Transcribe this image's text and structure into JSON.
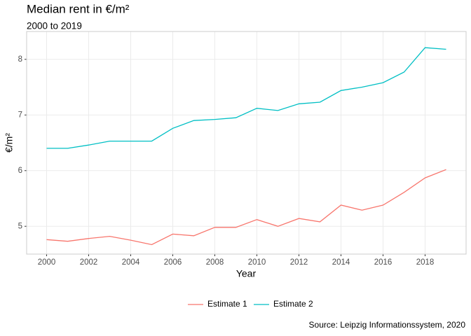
{
  "chart_data": {
    "type": "line",
    "title": "Median rent in €/m²",
    "subtitle": "2000 to 2019",
    "x_label": "Year",
    "y_label": "€/m²",
    "caption": "Source: Leipzig Informationssystem, 2020",
    "x": [
      2000,
      2001,
      2002,
      2003,
      2004,
      2005,
      2006,
      2007,
      2008,
      2009,
      2010,
      2011,
      2012,
      2013,
      2014,
      2015,
      2016,
      2017,
      2018,
      2019
    ],
    "series": [
      {
        "name": "Estimate 1",
        "color": "#f8766d",
        "values": [
          4.76,
          4.73,
          4.78,
          4.82,
          4.75,
          4.67,
          4.86,
          4.83,
          4.98,
          4.98,
          5.12,
          5.0,
          5.14,
          5.08,
          5.38,
          5.29,
          5.38,
          5.61,
          5.87,
          6.02
        ]
      },
      {
        "name": "Estimate 2",
        "color": "#00bfc4",
        "values": [
          6.4,
          6.4,
          6.46,
          6.53,
          6.53,
          6.53,
          6.76,
          6.9,
          6.92,
          6.95,
          7.12,
          7.08,
          7.2,
          7.23,
          7.44,
          7.5,
          7.58,
          7.77,
          8.21,
          8.18
        ]
      }
    ],
    "xlim": [
      1999.05,
      2019.95
    ],
    "xticks": [
      2000,
      2002,
      2004,
      2006,
      2008,
      2010,
      2012,
      2014,
      2016,
      2018
    ],
    "ylim": [
      4.5,
      8.5
    ],
    "yticks": [
      5,
      6,
      7,
      8
    ],
    "grid": true,
    "legend": "bottom"
  }
}
